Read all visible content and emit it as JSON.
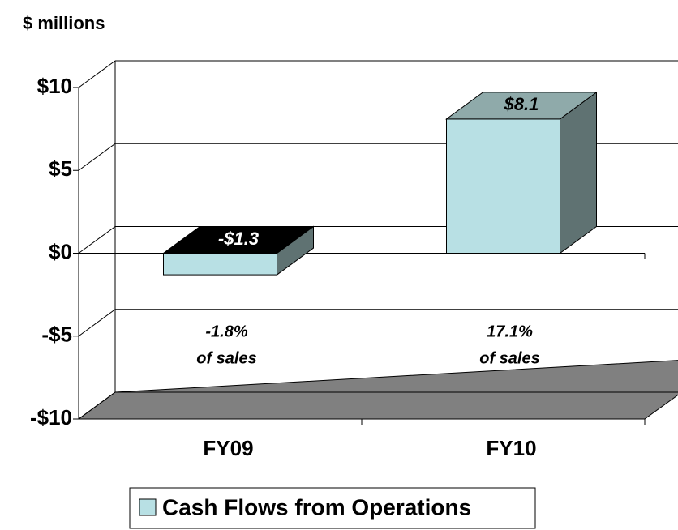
{
  "chart_data": {
    "type": "bar3d",
    "y_label": "$ millions",
    "categories": [
      "FY09",
      "FY10"
    ],
    "series": [
      {
        "name": "Cash Flows from Operations",
        "color": "#b8e0e4",
        "values": [
          -1.3,
          8.1
        ],
        "value_labels": [
          "-$1.3",
          "$8.1"
        ]
      }
    ],
    "annotations": [
      [
        "-1.8%",
        "of sales"
      ],
      [
        "17.1%",
        "of sales"
      ]
    ],
    "ylim": [
      -10,
      10
    ],
    "yticks": [
      {
        "value": -10,
        "label": "-$10"
      },
      {
        "value": -5,
        "label": "-$5"
      },
      {
        "value": 0,
        "label": "$0"
      },
      {
        "value": 5,
        "label": "$5"
      },
      {
        "value": 10,
        "label": "$10"
      }
    ],
    "grid": true
  }
}
